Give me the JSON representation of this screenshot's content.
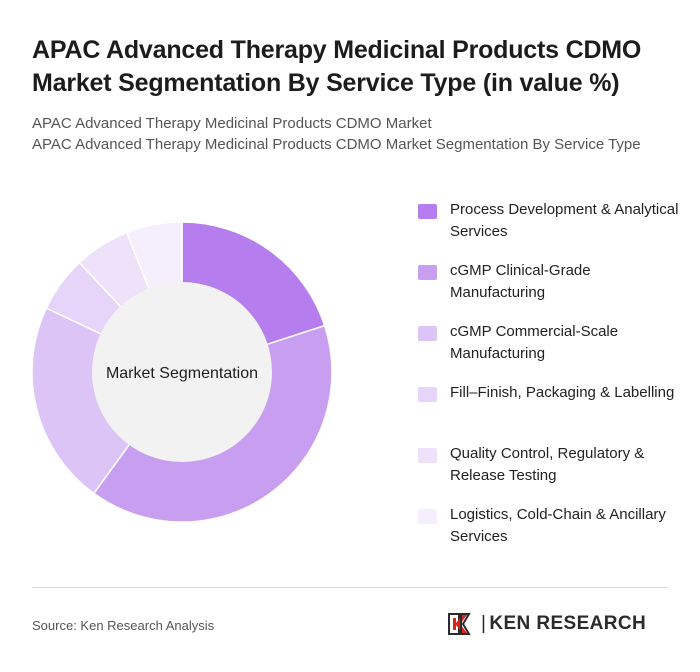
{
  "header": {
    "title": "APAC Advanced Therapy Medicinal Products CDMO Market Segmentation By Service Type (in value %)",
    "subtitle_line1": "APAC Advanced Therapy Medicinal Products CDMO Market",
    "subtitle_line2": "APAC Advanced Therapy Medicinal Products CDMO Market Segmentation By Service Type"
  },
  "chart_data": {
    "type": "pie",
    "center_label": "Market Segmentation",
    "legend_position": "right",
    "categories": [
      "Process Development & Analytical Services",
      "cGMP Clinical-Grade Manufacturing",
      "cGMP Commercial-Scale Manufacturing",
      "Fill–Finish, Packaging & Labelling",
      "Quality Control, Regulatory & Release Testing",
      "Logistics, Cold-Chain & Ancillary Services"
    ],
    "values": [
      20,
      40,
      22,
      6,
      6,
      6
    ],
    "colors": [
      "#b57ded",
      "#c89ef0",
      "#dcc4f6",
      "#e6d5f8",
      "#ede2fa",
      "#f5effd"
    ]
  },
  "footer": {
    "source": "Source: Ken Research Analysis",
    "brand_name": "KEN RESEARCH",
    "brand_separator": "|"
  }
}
